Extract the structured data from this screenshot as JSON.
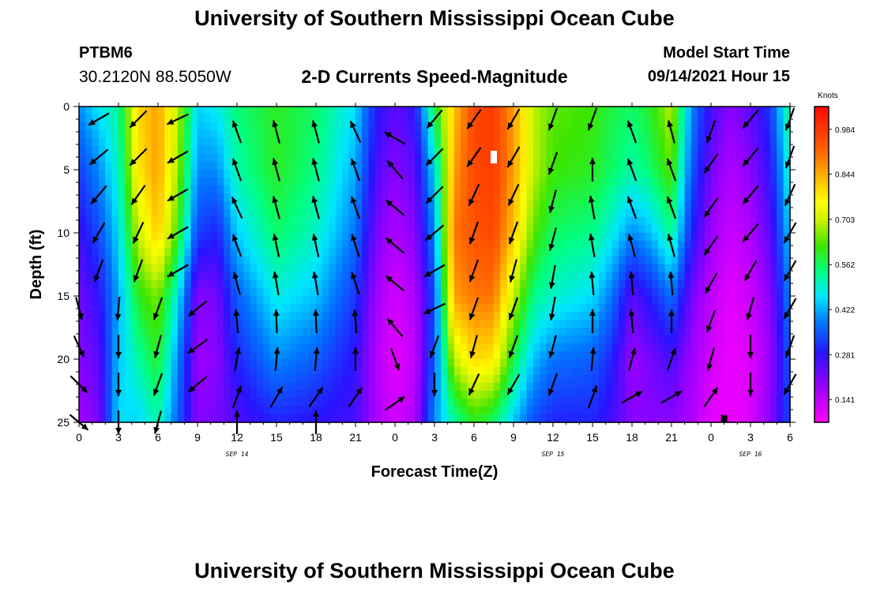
{
  "header": {
    "title": "University of Southern Mississippi Ocean Cube",
    "station_id": "PTBM6",
    "coordinates": "30.2120N  88.5050W",
    "chart_title": "2-D Currents Speed-Magnitude",
    "model_start_label": "Model Start Time",
    "model_start_time": "09/14/2021 Hour 15"
  },
  "footer": {
    "title": "University of Southern Mississippi Ocean Cube"
  },
  "colors": {
    "frame": "#000000",
    "arrow": "#000000"
  },
  "chart_data": {
    "type": "heatmap",
    "xlabel": "Forecast Time(Z)",
    "ylabel": "Depth (ft)",
    "colorbar_label": "Knots",
    "xlim": [
      0,
      54
    ],
    "ylim": [
      0,
      25
    ],
    "x_ticks": [
      0,
      3,
      6,
      9,
      12,
      15,
      18,
      21,
      24,
      27,
      30,
      33,
      36,
      39,
      42,
      45,
      48,
      51,
      54
    ],
    "x_tick_labels": [
      "0",
      "3",
      "6",
      "9",
      "12",
      "15",
      "18",
      "21",
      "0",
      "3",
      "6",
      "9",
      "12",
      "15",
      "18",
      "21",
      "0",
      "3",
      "6"
    ],
    "y_ticks": [
      0,
      5,
      10,
      15,
      20,
      25
    ],
    "y_tick_labels": [
      "0",
      "5",
      "10",
      "15",
      "20",
      "25"
    ],
    "date_labels": [
      {
        "x": 12,
        "text": "SEP 14"
      },
      {
        "x": 36,
        "text": "SEP 15"
      },
      {
        "x": 51,
        "text": "SEP 16"
      }
    ],
    "colorbar": {
      "min": 0.07,
      "max": 1.055,
      "ticks": [
        0.141,
        0.281,
        0.422,
        0.562,
        0.703,
        0.844,
        0.984
      ],
      "tick_labels": [
        "0.141",
        "0.281",
        "0.422",
        "0.562",
        "0.703",
        "0.844",
        "0.984"
      ]
    },
    "column_profiles": [
      {
        "t": 0,
        "speed": [
          0.4,
          0.33,
          0.27,
          0.22,
          0.2,
          0.18
        ]
      },
      {
        "t": 1.5,
        "speed": [
          0.47,
          0.4,
          0.34,
          0.28,
          0.24,
          0.21
        ]
      },
      {
        "t": 3,
        "speed": [
          0.53,
          0.5,
          0.46,
          0.42,
          0.44,
          0.46
        ]
      },
      {
        "t": 4.5,
        "speed": [
          0.8,
          0.78,
          0.7,
          0.6,
          0.52,
          0.45
        ]
      },
      {
        "t": 6,
        "speed": [
          0.86,
          0.86,
          0.82,
          0.66,
          0.6,
          0.52
        ]
      },
      {
        "t": 7.5,
        "speed": [
          0.7,
          0.68,
          0.62,
          0.48,
          0.4,
          0.36
        ]
      },
      {
        "t": 9,
        "speed": [
          0.45,
          0.4,
          0.33,
          0.2,
          0.18,
          0.2
        ]
      },
      {
        "t": 10.5,
        "speed": [
          0.48,
          0.4,
          0.3,
          0.22,
          0.2,
          0.22
        ]
      },
      {
        "t": 12,
        "speed": [
          0.55,
          0.52,
          0.45,
          0.36,
          0.3,
          0.25
        ]
      },
      {
        "t": 15,
        "speed": [
          0.6,
          0.6,
          0.56,
          0.48,
          0.4,
          0.3
        ]
      },
      {
        "t": 18,
        "speed": [
          0.56,
          0.54,
          0.5,
          0.44,
          0.36,
          0.28
        ]
      },
      {
        "t": 21,
        "speed": [
          0.46,
          0.42,
          0.38,
          0.32,
          0.28,
          0.26
        ]
      },
      {
        "t": 22.5,
        "speed": [
          0.3,
          0.26,
          0.22,
          0.18,
          0.16,
          0.17
        ]
      },
      {
        "t": 24,
        "speed": [
          0.24,
          0.2,
          0.16,
          0.12,
          0.1,
          0.12
        ]
      },
      {
        "t": 25.5,
        "speed": [
          0.28,
          0.24,
          0.2,
          0.16,
          0.14,
          0.16
        ]
      },
      {
        "t": 27,
        "speed": [
          0.58,
          0.46,
          0.4,
          0.34,
          0.36,
          0.4
        ]
      },
      {
        "t": 28.5,
        "speed": [
          0.82,
          0.86,
          0.9,
          0.86,
          0.7,
          0.52
        ]
      },
      {
        "t": 30,
        "speed": [
          0.96,
          0.96,
          0.94,
          0.9,
          0.8,
          0.6
        ]
      },
      {
        "t": 31.5,
        "speed": [
          0.98,
          0.98,
          0.96,
          0.9,
          0.78,
          0.56
        ]
      },
      {
        "t": 33,
        "speed": [
          0.86,
          0.86,
          0.82,
          0.7,
          0.58,
          0.44
        ]
      },
      {
        "t": 34.5,
        "speed": [
          0.7,
          0.7,
          0.64,
          0.54,
          0.44,
          0.34
        ]
      },
      {
        "t": 36,
        "speed": [
          0.64,
          0.62,
          0.56,
          0.5,
          0.38,
          0.3
        ]
      },
      {
        "t": 39,
        "speed": [
          0.62,
          0.6,
          0.54,
          0.46,
          0.36,
          0.3
        ]
      },
      {
        "t": 40.5,
        "speed": [
          0.58,
          0.56,
          0.48,
          0.38,
          0.3,
          0.26
        ]
      },
      {
        "t": 42,
        "speed": [
          0.56,
          0.52,
          0.4,
          0.24,
          0.18,
          0.2
        ]
      },
      {
        "t": 43.5,
        "speed": [
          0.6,
          0.56,
          0.44,
          0.3,
          0.22,
          0.2
        ]
      },
      {
        "t": 45,
        "speed": [
          0.7,
          0.64,
          0.54,
          0.38,
          0.26,
          0.2
        ]
      },
      {
        "t": 46.5,
        "speed": [
          0.4,
          0.36,
          0.3,
          0.22,
          0.18,
          0.16
        ]
      },
      {
        "t": 48,
        "speed": [
          0.26,
          0.22,
          0.18,
          0.14,
          0.12,
          0.1
        ]
      },
      {
        "t": 49.5,
        "speed": [
          0.2,
          0.16,
          0.13,
          0.1,
          0.09,
          0.09
        ]
      },
      {
        "t": 51,
        "speed": [
          0.24,
          0.2,
          0.16,
          0.13,
          0.11,
          0.11
        ]
      },
      {
        "t": 52.5,
        "speed": [
          0.32,
          0.28,
          0.24,
          0.2,
          0.18,
          0.2
        ]
      },
      {
        "t": 54,
        "speed": [
          0.55,
          0.5,
          0.45,
          0.4,
          0.36,
          0.34
        ]
      }
    ],
    "profile_depths": [
      0,
      5,
      10,
      15,
      20,
      25
    ],
    "vectors": [
      {
        "t": 1.5,
        "d": 1,
        "dir": 240
      },
      {
        "t": 4.5,
        "d": 1,
        "dir": 225
      },
      {
        "t": 7.5,
        "d": 1,
        "dir": 245
      },
      {
        "t": 12,
        "d": 2,
        "dir": 340
      },
      {
        "t": 15,
        "d": 2,
        "dir": 345
      },
      {
        "t": 18,
        "d": 2,
        "dir": 345
      },
      {
        "t": 21,
        "d": 2,
        "dir": 335
      },
      {
        "t": 24,
        "d": 2.5,
        "dir": 300
      },
      {
        "t": 27,
        "d": 1,
        "dir": 220
      },
      {
        "t": 30,
        "d": 1,
        "dir": 215
      },
      {
        "t": 33,
        "d": 1,
        "dir": 210
      },
      {
        "t": 36,
        "d": 1,
        "dir": 200
      },
      {
        "t": 39,
        "d": 1,
        "dir": 200
      },
      {
        "t": 42,
        "d": 2,
        "dir": 340
      },
      {
        "t": 45,
        "d": 2,
        "dir": 345
      },
      {
        "t": 48,
        "d": 2,
        "dir": 200
      },
      {
        "t": 51,
        "d": 1,
        "dir": 220
      },
      {
        "t": 54,
        "d": 1,
        "dir": 200
      },
      {
        "t": 1.5,
        "d": 4,
        "dir": 230
      },
      {
        "t": 4.5,
        "d": 4,
        "dir": 225
      },
      {
        "t": 7.5,
        "d": 4,
        "dir": 240
      },
      {
        "t": 12,
        "d": 5,
        "dir": 340
      },
      {
        "t": 15,
        "d": 5,
        "dir": 345
      },
      {
        "t": 18,
        "d": 5,
        "dir": 345
      },
      {
        "t": 21,
        "d": 5,
        "dir": 340
      },
      {
        "t": 24,
        "d": 5,
        "dir": 320
      },
      {
        "t": 27,
        "d": 4,
        "dir": 225
      },
      {
        "t": 30,
        "d": 4,
        "dir": 215
      },
      {
        "t": 33,
        "d": 4,
        "dir": 210
      },
      {
        "t": 36,
        "d": 4.5,
        "dir": 200
      },
      {
        "t": 39,
        "d": 5,
        "dir": 0
      },
      {
        "t": 42,
        "d": 5,
        "dir": 340
      },
      {
        "t": 45,
        "d": 5,
        "dir": 340
      },
      {
        "t": 48,
        "d": 4.5,
        "dir": 215
      },
      {
        "t": 51,
        "d": 4,
        "dir": 220
      },
      {
        "t": 54,
        "d": 4,
        "dir": 200
      },
      {
        "t": 1.5,
        "d": 7,
        "dir": 220
      },
      {
        "t": 4.5,
        "d": 7,
        "dir": 215
      },
      {
        "t": 7.5,
        "d": 7,
        "dir": 240
      },
      {
        "t": 12,
        "d": 8,
        "dir": 335
      },
      {
        "t": 15,
        "d": 8,
        "dir": 345
      },
      {
        "t": 18,
        "d": 8,
        "dir": 345
      },
      {
        "t": 21,
        "d": 8,
        "dir": 340
      },
      {
        "t": 24,
        "d": 8,
        "dir": 310
      },
      {
        "t": 27,
        "d": 7,
        "dir": 225
      },
      {
        "t": 30,
        "d": 7,
        "dir": 205
      },
      {
        "t": 33,
        "d": 7,
        "dir": 205
      },
      {
        "t": 36,
        "d": 7.5,
        "dir": 195
      },
      {
        "t": 39,
        "d": 8,
        "dir": 350
      },
      {
        "t": 42,
        "d": 8,
        "dir": 340
      },
      {
        "t": 45,
        "d": 8,
        "dir": 340
      },
      {
        "t": 48,
        "d": 8,
        "dir": 215
      },
      {
        "t": 51,
        "d": 7,
        "dir": 220
      },
      {
        "t": 54,
        "d": 7,
        "dir": 205
      },
      {
        "t": 1.5,
        "d": 10,
        "dir": 210
      },
      {
        "t": 4.5,
        "d": 10,
        "dir": 205
      },
      {
        "t": 7.5,
        "d": 10,
        "dir": 240
      },
      {
        "t": 12,
        "d": 11,
        "dir": 340
      },
      {
        "t": 15,
        "d": 11,
        "dir": 348
      },
      {
        "t": 18,
        "d": 11,
        "dir": 348
      },
      {
        "t": 21,
        "d": 11,
        "dir": 342
      },
      {
        "t": 24,
        "d": 11,
        "dir": 310
      },
      {
        "t": 27,
        "d": 10,
        "dir": 230
      },
      {
        "t": 30,
        "d": 10,
        "dir": 200
      },
      {
        "t": 33,
        "d": 10,
        "dir": 200
      },
      {
        "t": 36,
        "d": 10.5,
        "dir": 195
      },
      {
        "t": 39,
        "d": 11,
        "dir": 350
      },
      {
        "t": 42,
        "d": 11,
        "dir": 345
      },
      {
        "t": 45,
        "d": 11,
        "dir": 345
      },
      {
        "t": 48,
        "d": 11,
        "dir": 215
      },
      {
        "t": 51,
        "d": 10,
        "dir": 220
      },
      {
        "t": 54,
        "d": 10,
        "dir": 210
      },
      {
        "t": 1.5,
        "d": 13,
        "dir": 200
      },
      {
        "t": 4.5,
        "d": 13,
        "dir": 200
      },
      {
        "t": 7.5,
        "d": 13,
        "dir": 240
      },
      {
        "t": 12,
        "d": 14,
        "dir": 345
      },
      {
        "t": 15,
        "d": 14,
        "dir": 350
      },
      {
        "t": 18,
        "d": 14,
        "dir": 350
      },
      {
        "t": 21,
        "d": 14,
        "dir": 342
      },
      {
        "t": 24,
        "d": 14,
        "dir": 310
      },
      {
        "t": 27,
        "d": 13,
        "dir": 240
      },
      {
        "t": 30,
        "d": 13,
        "dir": 200
      },
      {
        "t": 33,
        "d": 13,
        "dir": 195
      },
      {
        "t": 36,
        "d": 13.5,
        "dir": 190
      },
      {
        "t": 39,
        "d": 14,
        "dir": 355
      },
      {
        "t": 42,
        "d": 14,
        "dir": 355
      },
      {
        "t": 45,
        "d": 14,
        "dir": 355
      },
      {
        "t": 48,
        "d": 14,
        "dir": 210
      },
      {
        "t": 51,
        "d": 13,
        "dir": 210
      },
      {
        "t": 54,
        "d": 13,
        "dir": 210
      },
      {
        "t": 0,
        "d": 16,
        "dir": 165
      },
      {
        "t": 3,
        "d": 16,
        "dir": 185
      },
      {
        "t": 6,
        "d": 16,
        "dir": 200
      },
      {
        "t": 9,
        "d": 16,
        "dir": 230
      },
      {
        "t": 12,
        "d": 17,
        "dir": 355
      },
      {
        "t": 15,
        "d": 17,
        "dir": 358
      },
      {
        "t": 18,
        "d": 17,
        "dir": 358
      },
      {
        "t": 21,
        "d": 17,
        "dir": 355
      },
      {
        "t": 24,
        "d": 17.5,
        "dir": 320
      },
      {
        "t": 27,
        "d": 16,
        "dir": 245
      },
      {
        "t": 30,
        "d": 16,
        "dir": 200
      },
      {
        "t": 33,
        "d": 16,
        "dir": 200
      },
      {
        "t": 36,
        "d": 16,
        "dir": 190
      },
      {
        "t": 39,
        "d": 17,
        "dir": 0
      },
      {
        "t": 42,
        "d": 17,
        "dir": 355
      },
      {
        "t": 45,
        "d": 17,
        "dir": 0
      },
      {
        "t": 48,
        "d": 17,
        "dir": 200
      },
      {
        "t": 51,
        "d": 16,
        "dir": 195
      },
      {
        "t": 54,
        "d": 16,
        "dir": 210
      },
      {
        "t": 0,
        "d": 19,
        "dir": 155
      },
      {
        "t": 3,
        "d": 19,
        "dir": 180
      },
      {
        "t": 6,
        "d": 19,
        "dir": 195
      },
      {
        "t": 9,
        "d": 19,
        "dir": 235
      },
      {
        "t": 12,
        "d": 20,
        "dir": 10
      },
      {
        "t": 15,
        "d": 20,
        "dir": 5
      },
      {
        "t": 18,
        "d": 20,
        "dir": 5
      },
      {
        "t": 21,
        "d": 20,
        "dir": 0
      },
      {
        "t": 24,
        "d": 20,
        "dir": 160
      },
      {
        "t": 27,
        "d": 19,
        "dir": 200
      },
      {
        "t": 30,
        "d": 19,
        "dir": 195
      },
      {
        "t": 33,
        "d": 19,
        "dir": 200
      },
      {
        "t": 36,
        "d": 19,
        "dir": 195
      },
      {
        "t": 39,
        "d": 20,
        "dir": 5
      },
      {
        "t": 42,
        "d": 20,
        "dir": 15
      },
      {
        "t": 45,
        "d": 20,
        "dir": 20
      },
      {
        "t": 48,
        "d": 20,
        "dir": 195
      },
      {
        "t": 51,
        "d": 19,
        "dir": 180
      },
      {
        "t": 54,
        "d": 19,
        "dir": 200
      },
      {
        "t": 0,
        "d": 22,
        "dir": 135
      },
      {
        "t": 3,
        "d": 22,
        "dir": 180
      },
      {
        "t": 6,
        "d": 22,
        "dir": 200
      },
      {
        "t": 9,
        "d": 22,
        "dir": 230
      },
      {
        "t": 12,
        "d": 23,
        "dir": 20
      },
      {
        "t": 15,
        "d": 23,
        "dir": 30
      },
      {
        "t": 18,
        "d": 23,
        "dir": 35
      },
      {
        "t": 21,
        "d": 23,
        "dir": 35
      },
      {
        "t": 24,
        "d": 23.5,
        "dir": 55
      },
      {
        "t": 27,
        "d": 22,
        "dir": 180
      },
      {
        "t": 30,
        "d": 22,
        "dir": 205
      },
      {
        "t": 33,
        "d": 22,
        "dir": 210
      },
      {
        "t": 36,
        "d": 22,
        "dir": 200
      },
      {
        "t": 39,
        "d": 23,
        "dir": 20
      },
      {
        "t": 42,
        "d": 23,
        "dir": 60
      },
      {
        "t": 45,
        "d": 23,
        "dir": 60
      },
      {
        "t": 48,
        "d": 23,
        "dir": 35
      },
      {
        "t": 51,
        "d": 22,
        "dir": 180
      },
      {
        "t": 54,
        "d": 22,
        "dir": 210
      },
      {
        "t": 0,
        "d": 25,
        "dir": 130
      },
      {
        "t": 3,
        "d": 25,
        "dir": 180
      },
      {
        "t": 6,
        "d": 25,
        "dir": 195
      },
      {
        "t": 12,
        "d": 25,
        "dir": 0
      },
      {
        "t": 18,
        "d": 25,
        "dir": 0
      }
    ],
    "markers": [
      {
        "t": 31.5,
        "d": 4,
        "shape": "white-rect"
      },
      {
        "t": 49,
        "d": 24.8,
        "shape": "black-rect"
      }
    ]
  }
}
